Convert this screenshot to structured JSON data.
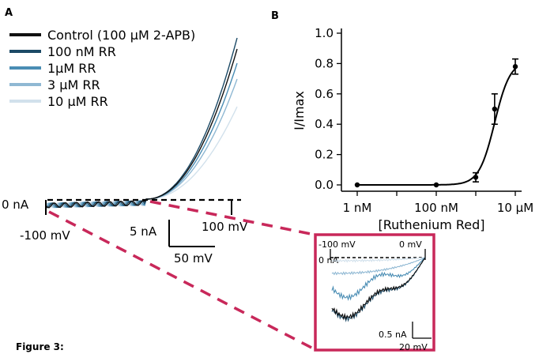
{
  "panel_a": {
    "letter": "A",
    "legend": [
      {
        "label": "Control (100 µM 2-APB)",
        "color": "#111111"
      },
      {
        "label": "100 nM RR",
        "color": "#1c4a66"
      },
      {
        "label": "1µM RR",
        "color": "#4a8db4"
      },
      {
        "label": "3 µM RR",
        "color": "#8fb8d3"
      },
      {
        "label": "10 µM RR",
        "color": "#d2e1ec"
      }
    ],
    "zero_label": "0 nA",
    "v_start_label": "-100 mV",
    "v_end_label": "100 mV",
    "scale_current": "5 nA",
    "scale_voltage": "50 mV",
    "highlight_color": "#c8285a"
  },
  "panel_b": {
    "letter": "B"
  },
  "inset": {
    "v_start_label": "-100 mV",
    "v_end_label": "0 mV",
    "zero_label": "0 nA",
    "scale_current": "0.5 nA",
    "scale_voltage": "20 mV",
    "frame_color": "#c8285a"
  },
  "caption": "Figure 3:",
  "chart_data": [
    {
      "type": "scatter",
      "panel": "B",
      "xlabel": "[Ruthenium Red]",
      "ylabel": "I/Imax",
      "x_scale": "log",
      "x_ticks": [
        "1 nM",
        "100 nM",
        "10 µM"
      ],
      "y_ticks": [
        "0.0",
        "0.2",
        "0.4",
        "0.6",
        "0.8",
        "1.0"
      ],
      "ylim": [
        0,
        1.0
      ],
      "concentration_nM": [
        1,
        100,
        1000,
        3000,
        10000
      ],
      "values": [
        0.0,
        0.0,
        0.05,
        0.5,
        0.78
      ],
      "errors": [
        0.0,
        0.0,
        0.03,
        0.1,
        0.05
      ],
      "fit": {
        "type": "hill",
        "ic50_nM": 3000,
        "hill": 2.2,
        "top": 0.82,
        "bottom": 0.0
      },
      "color": "#000000"
    },
    {
      "type": "line",
      "panel": "A",
      "xlim_mV": [
        -100,
        100
      ],
      "series": [
        {
          "name": "Control (100 µM 2-APB)",
          "color": "#111111"
        },
        {
          "name": "100 nM RR",
          "color": "#1c4a66"
        },
        {
          "name": "1µM RR",
          "color": "#4a8db4"
        },
        {
          "name": "3 µM RR",
          "color": "#8fb8d3"
        },
        {
          "name": "10 µM RR",
          "color": "#d2e1ec"
        }
      ]
    }
  ]
}
